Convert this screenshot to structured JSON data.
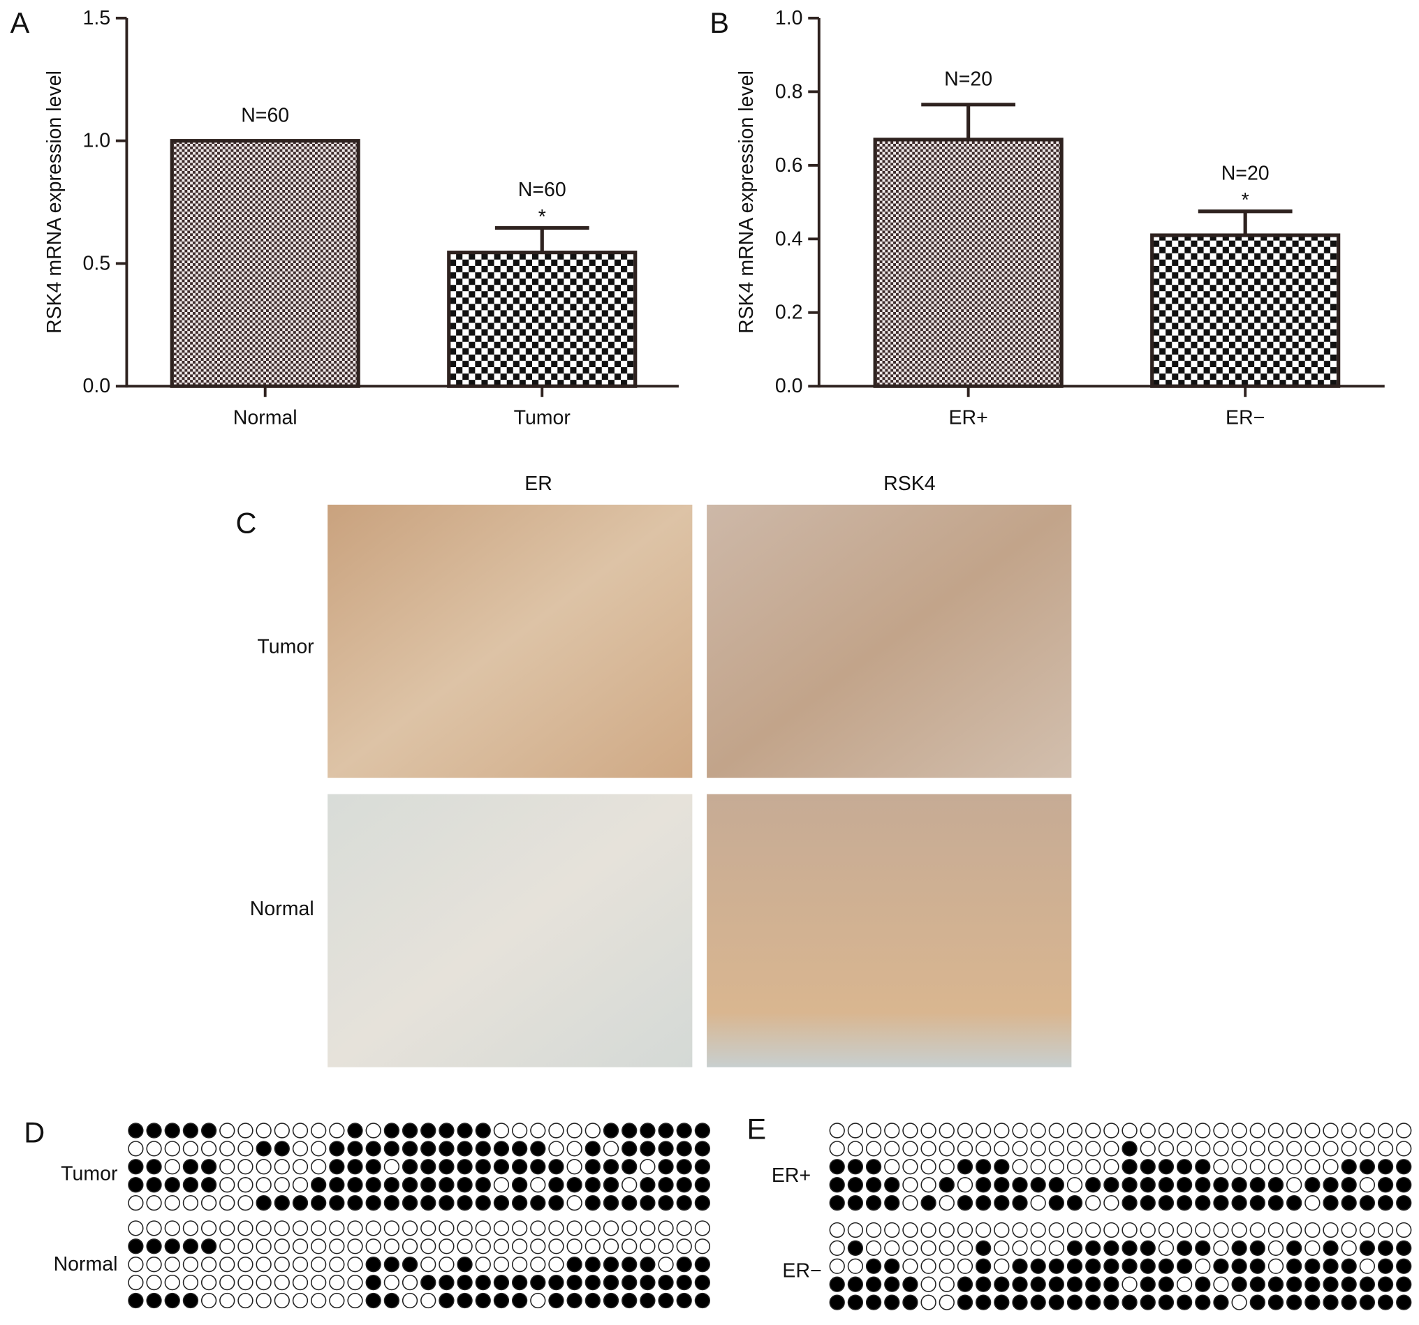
{
  "chart_data": [
    {
      "type": "bar",
      "panel_label": "A",
      "ylabel": "RSK4 mRNA expression level",
      "categories": [
        "Normal",
        "Tumor"
      ],
      "values": [
        1.0,
        0.545
      ],
      "errors": [
        null,
        0.1
      ],
      "n_labels": [
        "N=60",
        "N=60"
      ],
      "significance": [
        null,
        "*"
      ],
      "ylim": [
        0,
        1.5
      ],
      "yticks": [
        {
          "value": 0,
          "label": "0.0"
        },
        0.5,
        {
          "value": 1,
          "label": "1.0"
        },
        1.5
      ]
    },
    {
      "type": "bar",
      "panel_label": "B",
      "ylabel": "RSK4 mRNA expression level",
      "categories": [
        "ER+",
        "ER−"
      ],
      "values": [
        0.67,
        0.41
      ],
      "errors": [
        0.095,
        0.065
      ],
      "n_labels": [
        "N=20",
        "N=20"
      ],
      "significance": [
        null,
        "*"
      ],
      "ylim": [
        0,
        1.0
      ],
      "yticks": [
        {
          "value": 0,
          "label": "0.0"
        },
        0.2,
        0.4,
        0.6,
        0.8,
        {
          "value": 1,
          "label": "1.0"
        }
      ]
    }
  ],
  "panel_c": {
    "panel_label": "C",
    "columns": [
      "ER",
      "RSK4"
    ],
    "rows": [
      "Tumor",
      "Normal"
    ]
  },
  "panel_d": {
    "panel_label": "D",
    "groups": [
      {
        "label": "Tumor",
        "rows": [
          [
            1,
            1,
            1,
            1,
            1,
            0,
            0,
            0,
            0,
            0,
            0,
            0,
            1,
            0,
            1,
            1,
            1,
            1,
            1,
            1,
            0,
            0,
            0,
            0,
            0,
            0,
            1,
            1,
            1,
            1,
            1,
            1
          ],
          [
            0,
            0,
            0,
            0,
            0,
            0,
            0,
            1,
            1,
            0,
            0,
            1,
            1,
            1,
            1,
            1,
            1,
            1,
            1,
            1,
            1,
            1,
            1,
            0,
            0,
            1,
            0,
            1,
            1,
            1,
            1,
            1
          ],
          [
            1,
            1,
            0,
            1,
            1,
            0,
            0,
            0,
            0,
            0,
            0,
            1,
            1,
            1,
            0,
            1,
            1,
            1,
            1,
            1,
            1,
            1,
            1,
            1,
            0,
            1,
            1,
            1,
            0,
            1,
            1,
            1
          ],
          [
            1,
            1,
            1,
            1,
            1,
            0,
            0,
            0,
            0,
            0,
            1,
            1,
            1,
            1,
            1,
            1,
            1,
            1,
            1,
            1,
            0,
            1,
            0,
            1,
            1,
            1,
            1,
            0,
            1,
            1,
            1,
            1
          ],
          [
            0,
            0,
            0,
            0,
            0,
            0,
            0,
            1,
            1,
            1,
            1,
            1,
            1,
            1,
            1,
            1,
            1,
            1,
            1,
            1,
            1,
            1,
            1,
            1,
            0,
            1,
            1,
            1,
            1,
            1,
            1,
            1
          ]
        ]
      },
      {
        "label": "Normal",
        "rows": [
          [
            0,
            0,
            0,
            0,
            0,
            0,
            0,
            0,
            0,
            0,
            0,
            0,
            0,
            0,
            0,
            0,
            0,
            0,
            0,
            0,
            0,
            0,
            0,
            0,
            0,
            0,
            0,
            0,
            0,
            0,
            0,
            0
          ],
          [
            1,
            1,
            1,
            1,
            1,
            0,
            0,
            0,
            0,
            0,
            0,
            0,
            0,
            0,
            0,
            0,
            0,
            0,
            0,
            0,
            0,
            0,
            0,
            0,
            0,
            0,
            0,
            0,
            0,
            0,
            0,
            0
          ],
          [
            0,
            0,
            0,
            0,
            0,
            0,
            0,
            0,
            0,
            0,
            0,
            0,
            0,
            1,
            1,
            1,
            0,
            0,
            1,
            0,
            0,
            0,
            0,
            0,
            1,
            1,
            1,
            1,
            1,
            0,
            1,
            1
          ],
          [
            0,
            0,
            0,
            0,
            0,
            0,
            0,
            0,
            0,
            0,
            0,
            0,
            0,
            1,
            0,
            0,
            1,
            1,
            1,
            1,
            1,
            1,
            1,
            1,
            1,
            1,
            1,
            1,
            1,
            1,
            1,
            1
          ],
          [
            1,
            1,
            1,
            1,
            0,
            0,
            0,
            0,
            0,
            0,
            0,
            0,
            0,
            1,
            1,
            0,
            0,
            1,
            1,
            1,
            1,
            1,
            0,
            1,
            1,
            1,
            1,
            1,
            1,
            1,
            1,
            1
          ]
        ]
      }
    ]
  },
  "panel_e": {
    "panel_label": "E",
    "groups": [
      {
        "label": "ER+",
        "rows": [
          [
            0,
            0,
            0,
            0,
            0,
            0,
            0,
            0,
            0,
            0,
            0,
            0,
            0,
            0,
            0,
            0,
            0,
            0,
            0,
            0,
            0,
            0,
            0,
            0,
            0,
            0,
            0,
            0,
            0,
            0,
            0,
            0
          ],
          [
            0,
            0,
            0,
            0,
            0,
            0,
            0,
            0,
            0,
            0,
            0,
            0,
            0,
            0,
            0,
            0,
            1,
            0,
            0,
            0,
            0,
            0,
            0,
            0,
            0,
            0,
            0,
            0,
            0,
            0,
            0,
            0
          ],
          [
            1,
            1,
            1,
            0,
            0,
            0,
            0,
            1,
            1,
            1,
            0,
            0,
            0,
            0,
            0,
            0,
            1,
            1,
            1,
            1,
            1,
            0,
            0,
            0,
            0,
            0,
            0,
            0,
            1,
            1,
            1,
            1
          ],
          [
            1,
            1,
            1,
            1,
            0,
            0,
            1,
            0,
            1,
            1,
            1,
            1,
            1,
            0,
            1,
            1,
            1,
            1,
            1,
            1,
            1,
            1,
            1,
            1,
            1,
            0,
            1,
            1,
            1,
            0,
            1,
            1
          ],
          [
            1,
            1,
            1,
            1,
            0,
            1,
            0,
            1,
            1,
            1,
            1,
            0,
            1,
            1,
            0,
            0,
            1,
            1,
            1,
            1,
            1,
            1,
            1,
            1,
            1,
            1,
            0,
            1,
            1,
            1,
            1,
            1
          ]
        ]
      },
      {
        "label": "ER−",
        "rows": [
          [
            0,
            0,
            0,
            0,
            0,
            0,
            0,
            0,
            0,
            0,
            0,
            0,
            0,
            0,
            0,
            0,
            0,
            0,
            0,
            0,
            0,
            0,
            0,
            0,
            0,
            0,
            0,
            0,
            0,
            0,
            0,
            0
          ],
          [
            0,
            1,
            0,
            0,
            0,
            0,
            0,
            0,
            1,
            0,
            0,
            0,
            0,
            1,
            1,
            1,
            1,
            1,
            0,
            1,
            1,
            0,
            1,
            1,
            0,
            1,
            0,
            1,
            0,
            1,
            1,
            1
          ],
          [
            0,
            0,
            1,
            1,
            0,
            0,
            0,
            0,
            1,
            0,
            1,
            1,
            1,
            1,
            1,
            1,
            1,
            1,
            1,
            1,
            0,
            1,
            1,
            1,
            0,
            1,
            1,
            1,
            1,
            0,
            1,
            1
          ],
          [
            1,
            1,
            1,
            1,
            1,
            0,
            0,
            1,
            1,
            1,
            1,
            1,
            1,
            1,
            1,
            1,
            0,
            1,
            1,
            0,
            1,
            0,
            1,
            1,
            1,
            1,
            1,
            1,
            1,
            1,
            1,
            1
          ],
          [
            1,
            1,
            1,
            1,
            1,
            0,
            0,
            1,
            1,
            1,
            1,
            1,
            1,
            1,
            1,
            1,
            1,
            1,
            1,
            1,
            1,
            1,
            0,
            1,
            1,
            1,
            1,
            1,
            1,
            1,
            1,
            1
          ]
        ]
      }
    ]
  }
}
